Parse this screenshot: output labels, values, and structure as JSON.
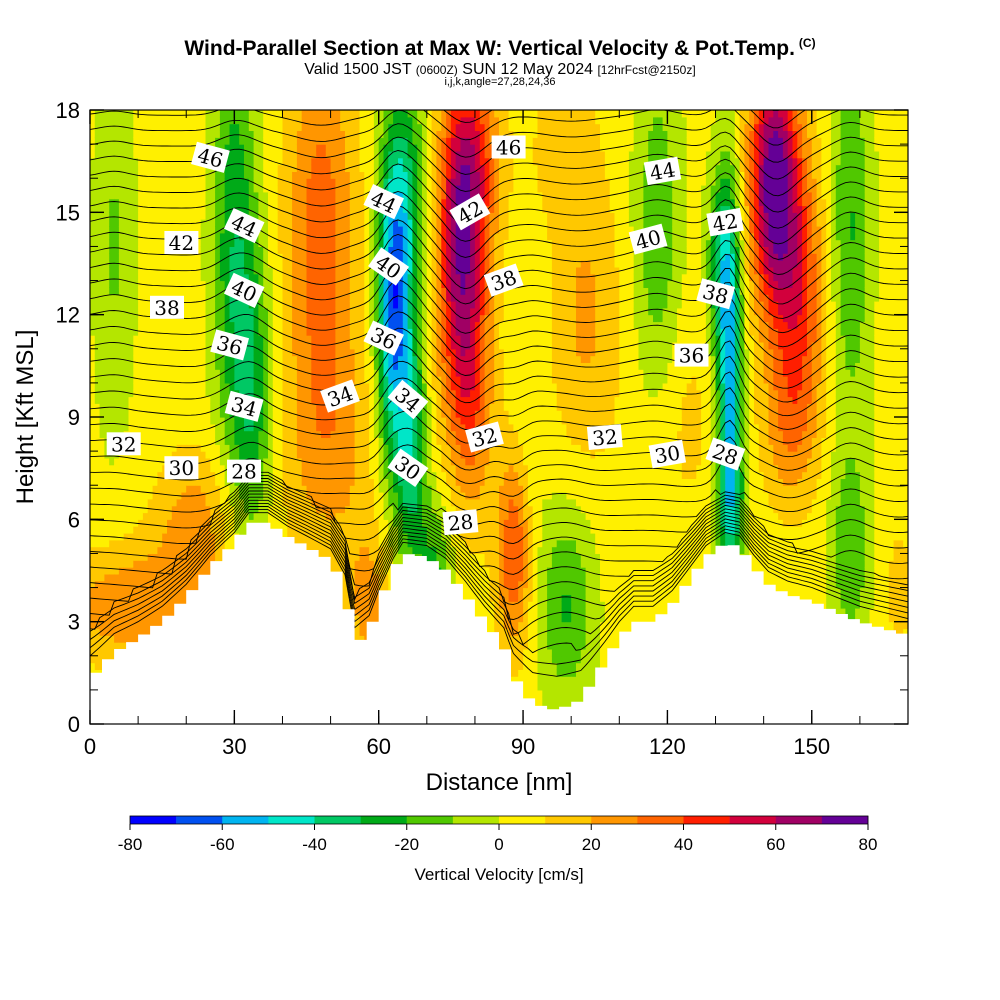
{
  "title": {
    "main": "Wind-Parallel Section at Max W: Vertical Velocity & Pot.Temp.",
    "copyright": "(C)",
    "valid_prefix": "Valid 1500 JST",
    "valid_utc": "(0600Z)",
    "valid_date": "SUN 12 May 2024",
    "forecast_tag": "[12hrFcst@2150z]",
    "indices": "i,j,k,angle=27,28,24,36"
  },
  "chart_data": {
    "type": "heatmap",
    "xlabel": "Distance [nm]",
    "ylabel": "Height [Kft MSL]",
    "xlim": [
      0,
      170
    ],
    "ylim": [
      0,
      18
    ],
    "x_ticks": [
      0,
      30,
      60,
      90,
      120,
      150
    ],
    "y_ticks": [
      0,
      3,
      6,
      9,
      12,
      15,
      18
    ],
    "colorbar": {
      "label": "Vertical Velocity [cm/s]",
      "range": [
        -80,
        80
      ],
      "step": 10,
      "tick_labels": [
        "-80",
        "-60",
        "-40",
        "-20",
        "0",
        "20",
        "40",
        "60",
        "80"
      ],
      "colors": [
        "#0000ff",
        "#0050f0",
        "#00b4f0",
        "#00e6c8",
        "#00c864",
        "#00aa18",
        "#50c800",
        "#b4e600",
        "#fff000",
        "#ffc800",
        "#ff9600",
        "#ff6400",
        "#ff1e00",
        "#d2003c",
        "#a00064",
        "#640096"
      ]
    },
    "terrain_kft": [
      [
        0,
        1.3
      ],
      [
        5,
        2.1
      ],
      [
        10,
        2.5
      ],
      [
        15,
        3.0
      ],
      [
        20,
        3.7
      ],
      [
        25,
        4.6
      ],
      [
        30,
        5.3
      ],
      [
        33,
        5.9
      ],
      [
        37,
        5.9
      ],
      [
        41,
        5.5
      ],
      [
        45,
        5.2
      ],
      [
        50,
        4.8
      ],
      [
        53,
        4.0
      ],
      [
        55,
        2.3
      ],
      [
        58,
        2.7
      ],
      [
        60,
        3.5
      ],
      [
        63,
        4.5
      ],
      [
        65,
        5.0
      ],
      [
        70,
        4.9
      ],
      [
        74,
        4.5
      ],
      [
        78,
        3.8
      ],
      [
        82,
        3.0
      ],
      [
        86,
        2.3
      ],
      [
        88,
        1.4
      ],
      [
        92,
        0.6
      ],
      [
        97,
        0.4
      ],
      [
        102,
        0.7
      ],
      [
        106,
        1.6
      ],
      [
        110,
        2.5
      ],
      [
        113,
        3.0
      ],
      [
        117,
        3.0
      ],
      [
        121,
        3.5
      ],
      [
        125,
        4.3
      ],
      [
        128,
        4.9
      ],
      [
        132,
        5.3
      ],
      [
        135,
        5.2
      ],
      [
        138,
        4.6
      ],
      [
        141,
        4.1
      ],
      [
        145,
        3.8
      ],
      [
        150,
        3.6
      ],
      [
        155,
        3.3
      ],
      [
        160,
        3.0
      ],
      [
        165,
        2.8
      ],
      [
        170,
        2.6
      ]
    ],
    "vertical_velocity_cells": [
      {
        "x": 10,
        "z": 3.5,
        "sx": 12,
        "sz": 1.2,
        "w": 25
      },
      {
        "x": 5,
        "z": 14,
        "sx": 3,
        "sz": 4,
        "w": -15
      },
      {
        "x": 22,
        "z": 6,
        "sx": 6,
        "sz": 1.5,
        "w": 20
      },
      {
        "x": 30,
        "z": 14,
        "sx": 3.2,
        "sz": 4.8,
        "w": -32
      },
      {
        "x": 34,
        "z": 9.5,
        "sx": 2.8,
        "sz": 3.0,
        "w": -28
      },
      {
        "x": 48,
        "z": 14.5,
        "sx": 5,
        "sz": 3.8,
        "w": 32
      },
      {
        "x": 50,
        "z": 8,
        "sx": 7,
        "sz": 2.5,
        "w": 18
      },
      {
        "x": 58,
        "z": 3.5,
        "sx": 3,
        "sz": 1.5,
        "w": 20
      },
      {
        "x": 63,
        "z": 12,
        "sx": 2.4,
        "sz": 3.2,
        "w": -65
      },
      {
        "x": 66,
        "z": 15.5,
        "sx": 3,
        "sz": 2.5,
        "w": -30
      },
      {
        "x": 67,
        "z": 8,
        "sx": 2.2,
        "sz": 2.5,
        "w": -40
      },
      {
        "x": 72,
        "z": 4.5,
        "sx": 2.5,
        "sz": 1.5,
        "w": -25
      },
      {
        "x": 77,
        "z": 13.5,
        "sx": 3.5,
        "sz": 3.5,
        "w": 58
      },
      {
        "x": 80,
        "z": 16.5,
        "sx": 4,
        "sz": 2.0,
        "w": 30
      },
      {
        "x": 80,
        "z": 9.5,
        "sx": 3,
        "sz": 2.5,
        "w": 20
      },
      {
        "x": 88,
        "z": 5,
        "sx": 2.5,
        "sz": 2.0,
        "w": 35
      },
      {
        "x": 92,
        "z": 8,
        "sx": 2.0,
        "sz": 1.5,
        "w": -5
      },
      {
        "x": 99,
        "z": 3.5,
        "sx": 4,
        "sz": 2.0,
        "w": -25
      },
      {
        "x": 103,
        "z": 12,
        "sx": 5,
        "sz": 3.0,
        "w": 18
      },
      {
        "x": 98,
        "z": 17,
        "sx": 5,
        "sz": 1.5,
        "w": 10
      },
      {
        "x": 118,
        "z": 14,
        "sx": 3.5,
        "sz": 4.0,
        "w": -22
      },
      {
        "x": 122,
        "z": 9,
        "sx": 6,
        "sz": 2.5,
        "w": 10
      },
      {
        "x": 133,
        "z": 10.5,
        "sx": 1.8,
        "sz": 3.5,
        "w": -55
      },
      {
        "x": 131,
        "z": 13.5,
        "sx": 2,
        "sz": 2.0,
        "w": -30
      },
      {
        "x": 133,
        "z": 6.5,
        "sx": 2,
        "sz": 1.5,
        "w": -30
      },
      {
        "x": 142,
        "z": 16,
        "sx": 3.5,
        "sz": 2.5,
        "w": 70
      },
      {
        "x": 147,
        "z": 12.5,
        "sx": 4,
        "sz": 3.0,
        "w": 40
      },
      {
        "x": 145,
        "z": 8.5,
        "sx": 4,
        "sz": 1.5,
        "w": 15
      },
      {
        "x": 158,
        "z": 14.5,
        "sx": 3,
        "sz": 4.0,
        "w": -25
      },
      {
        "x": 158,
        "z": 5.0,
        "sx": 3,
        "sz": 2.0,
        "w": -22
      },
      {
        "x": 168,
        "z": 4,
        "sx": 3,
        "sz": 2.0,
        "w": 8
      }
    ],
    "theta_labels": [
      {
        "text": "46",
        "x": 25,
        "z": 16.6,
        "angle": 15
      },
      {
        "text": "44",
        "x": 32,
        "z": 14.6,
        "angle": 25
      },
      {
        "text": "42",
        "x": 19,
        "z": 14.1,
        "angle": 0
      },
      {
        "text": "40",
        "x": 32,
        "z": 12.7,
        "angle": 25
      },
      {
        "text": "38",
        "x": 16,
        "z": 12.2,
        "angle": 0
      },
      {
        "text": "36",
        "x": 29,
        "z": 11.1,
        "angle": 15
      },
      {
        "text": "34",
        "x": 32,
        "z": 9.3,
        "angle": 15
      },
      {
        "text": "32",
        "x": 7,
        "z": 8.2,
        "angle": 0
      },
      {
        "text": "30",
        "x": 19,
        "z": 7.5,
        "angle": 0
      },
      {
        "text": "28",
        "x": 32,
        "z": 7.4,
        "angle": 0
      },
      {
        "text": "34",
        "x": 52,
        "z": 9.6,
        "angle": -20
      },
      {
        "text": "44",
        "x": 61,
        "z": 15.3,
        "angle": 25
      },
      {
        "text": "40",
        "x": 62,
        "z": 13.4,
        "angle": 35
      },
      {
        "text": "36",
        "x": 61,
        "z": 11.3,
        "angle": 25
      },
      {
        "text": "34",
        "x": 66,
        "z": 9.5,
        "angle": 40
      },
      {
        "text": "30",
        "x": 66,
        "z": 7.5,
        "angle": 35
      },
      {
        "text": "42",
        "x": 79,
        "z": 15.0,
        "angle": -30
      },
      {
        "text": "38",
        "x": 86,
        "z": 13.0,
        "angle": -20
      },
      {
        "text": "32",
        "x": 82,
        "z": 8.4,
        "angle": -15
      },
      {
        "text": "28",
        "x": 77,
        "z": 5.9,
        "angle": -5
      },
      {
        "text": "46",
        "x": 87,
        "z": 16.9,
        "angle": 0
      },
      {
        "text": "32",
        "x": 107,
        "z": 8.4,
        "angle": -5
      },
      {
        "text": "44",
        "x": 119,
        "z": 16.2,
        "angle": -10
      },
      {
        "text": "40",
        "x": 116,
        "z": 14.2,
        "angle": -15
      },
      {
        "text": "30",
        "x": 120,
        "z": 7.9,
        "angle": -10
      },
      {
        "text": "42",
        "x": 132,
        "z": 14.7,
        "angle": -10
      },
      {
        "text": "38",
        "x": 130,
        "z": 12.6,
        "angle": 15
      },
      {
        "text": "36",
        "x": 125,
        "z": 10.8,
        "angle": 0
      },
      {
        "text": "28",
        "x": 132,
        "z": 7.9,
        "angle": 20
      }
    ]
  }
}
